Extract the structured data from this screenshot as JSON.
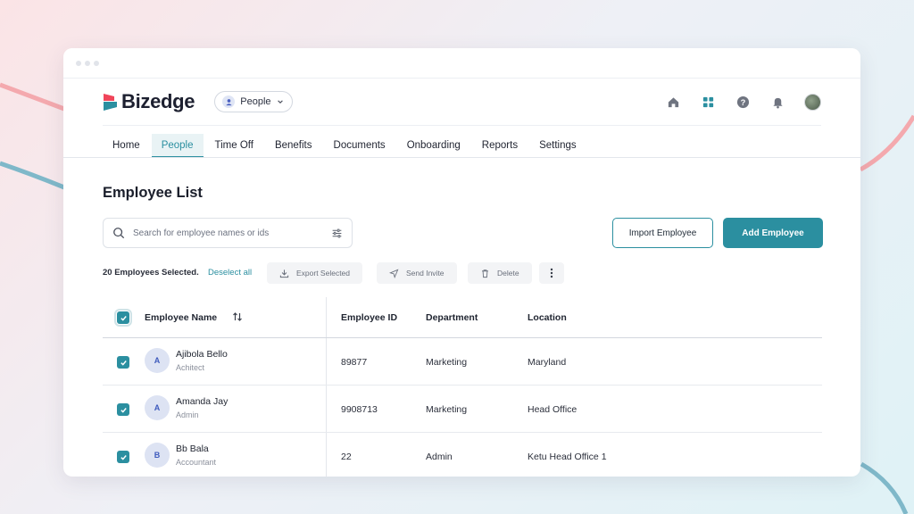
{
  "app": {
    "name": "Bizedge",
    "module": "People"
  },
  "nav": {
    "tabs": [
      "Home",
      "People",
      "Time Off",
      "Benefits",
      "Documents",
      "Onboarding",
      "Reports",
      "Settings"
    ],
    "active": "People"
  },
  "page": {
    "title": "Employee List"
  },
  "search": {
    "placeholder": "Search for employee names or ids"
  },
  "actions": {
    "import_label": "Import Employee",
    "add_label": "Add Employee"
  },
  "bulk": {
    "selected_text": "20 Employees Selected.",
    "deselect_label": "Deselect all",
    "export_label": "Export Selected",
    "invite_label": "Send Invite",
    "delete_label": "Delete"
  },
  "table": {
    "columns": [
      "Employee Name",
      "Employee ID",
      "Department",
      "Location"
    ],
    "rows": [
      {
        "initial": "A",
        "name": "Ajibola Bello",
        "role": "Achitect",
        "id": "89877",
        "department": "Marketing",
        "location": "Maryland",
        "checked": true
      },
      {
        "initial": "A",
        "name": "Amanda Jay",
        "role": "Admin",
        "id": "9908713",
        "department": "Marketing",
        "location": "Head Office",
        "checked": true
      },
      {
        "initial": "B",
        "name": "Bb Bala",
        "role": "Accountant",
        "id": "22",
        "department": "Admin",
        "location": "Ketu Head Office 1",
        "checked": true
      }
    ]
  },
  "colors": {
    "accent": "#2b8fa0",
    "logo_red": "#f0455a",
    "logo_teal": "#2b8fa0",
    "avatar_bg": "#dde3f3",
    "avatar_text": "#3f5bbd"
  },
  "icons": {
    "header": [
      "home-icon",
      "apps-grid-icon",
      "help-icon",
      "bell-icon",
      "user-avatar"
    ],
    "bulk": [
      "download-icon",
      "send-icon",
      "trash-icon",
      "more-vertical-icon"
    ]
  }
}
